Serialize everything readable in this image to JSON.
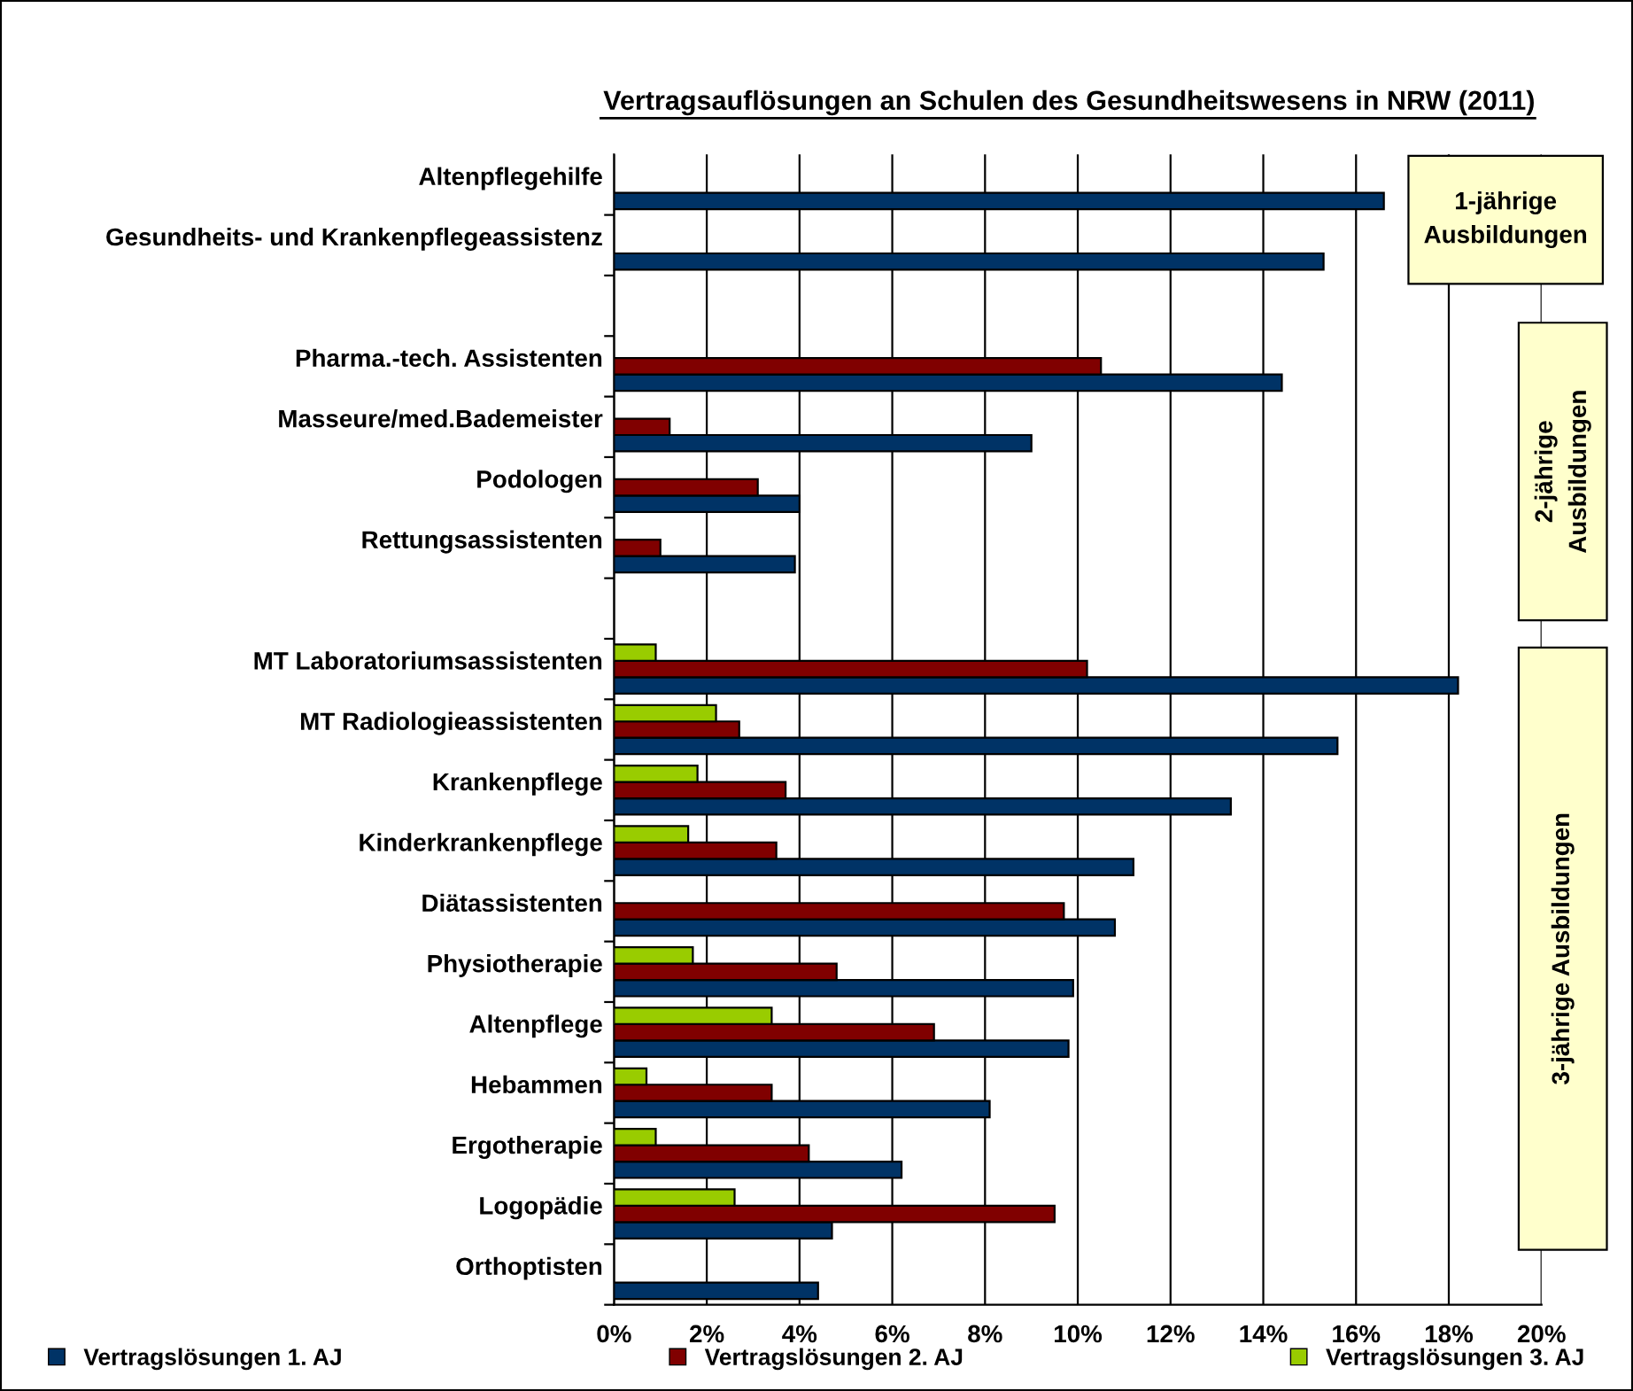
{
  "chart_data": {
    "type": "bar",
    "orientation": "horizontal",
    "title": "Vertragsauflösungen an Schulen des Gesundheitswesens in NRW (2011)",
    "categories": [
      "Altenpflegehilfe",
      "Gesundheits- und Krankenpflegeassistenz",
      null,
      "Pharma.-tech. Assistenten",
      "Masseure/med.Bademeister",
      "Podologen",
      "Rettungsassistenten",
      null,
      "MT Laboratoriumsassistenten",
      "MT Radiologieassistenten",
      "Krankenpflege",
      "Kinderkrankenpflege",
      "Diätassistenten",
      "Physiotherapie",
      "Altenpflege",
      "Hebammen",
      "Ergotherapie",
      "Logopädie",
      "Orthoptisten"
    ],
    "series": [
      {
        "name": "Vertragslösungen 1. AJ",
        "color": "#003366",
        "values": [
          16.6,
          15.3,
          null,
          14.4,
          9.0,
          4.0,
          3.9,
          null,
          18.2,
          15.6,
          13.3,
          11.2,
          10.8,
          9.9,
          9.8,
          8.1,
          6.2,
          4.7,
          4.4
        ]
      },
      {
        "name": "Vertragslösungen 2. AJ",
        "color": "#800000",
        "values": [
          null,
          null,
          null,
          10.5,
          1.2,
          3.1,
          1.0,
          null,
          10.2,
          2.7,
          3.7,
          3.5,
          9.7,
          4.8,
          6.9,
          3.4,
          4.2,
          9.5,
          null
        ]
      },
      {
        "name": "Vertragslösungen 3. AJ",
        "color": "#99cc00",
        "values": [
          null,
          null,
          null,
          null,
          null,
          null,
          null,
          null,
          0.9,
          2.2,
          1.8,
          1.6,
          null,
          1.7,
          3.4,
          0.7,
          0.9,
          2.6,
          null
        ]
      }
    ],
    "xlim": [
      0,
      20
    ],
    "xticks": [
      {
        "value": 0,
        "label": "0%"
      },
      {
        "value": 2,
        "label": "2%"
      },
      {
        "value": 4,
        "label": "4%"
      },
      {
        "value": 6,
        "label": "6%"
      },
      {
        "value": 8,
        "label": "8%"
      },
      {
        "value": 10,
        "label": "10%"
      },
      {
        "value": 12,
        "label": "12%"
      },
      {
        "value": 14,
        "label": "14%"
      },
      {
        "value": 16,
        "label": "16%"
      },
      {
        "value": 18,
        "label": "18%"
      },
      {
        "value": 20,
        "label": "20%"
      }
    ],
    "grid": "x",
    "legend": "bottom",
    "annotations": [
      "1-jährige\nAusbildungen",
      "2-jährige\nAusbildungen",
      "3-jährige Ausbildungen"
    ]
  }
}
